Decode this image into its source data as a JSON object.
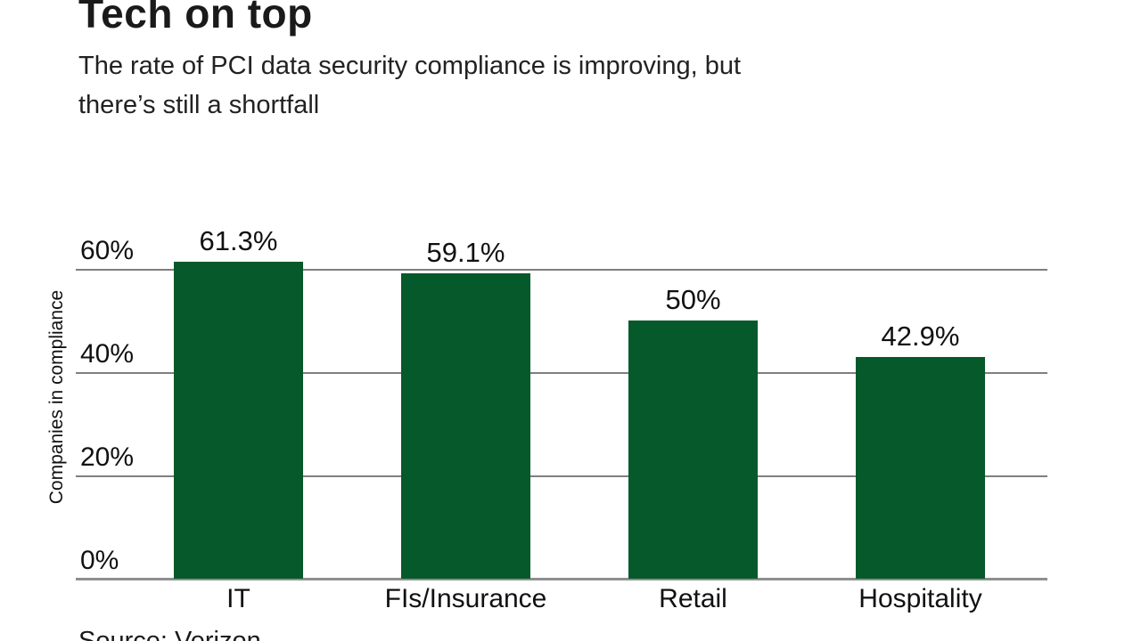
{
  "header": {
    "title": "Tech on top",
    "subtitle": "The rate of PCI data security compliance is improving, but\nthere’s still a shortfall"
  },
  "chart_data": {
    "type": "bar",
    "categories": [
      "IT",
      "FIs/Insurance",
      "Retail",
      "Hospitality"
    ],
    "values": [
      61.3,
      59.1,
      50,
      42.9
    ],
    "value_labels": [
      "61.3%",
      "59.1%",
      "50%",
      "42.9%"
    ],
    "title": "Tech on top",
    "xlabel": "",
    "ylabel": "Companies in compliance",
    "yticks": [
      0,
      20,
      40,
      60
    ],
    "ytick_labels": [
      "0%",
      "20%",
      "40%",
      "60%"
    ],
    "ylim": [
      0,
      66
    ],
    "grid": true,
    "legend": "none",
    "colors": {
      "bar": "#06592a",
      "gridline": "#7f7f7f",
      "axis_line": "#8f8f8f",
      "text": "#111111"
    }
  },
  "footer": {
    "source": "Source: Verizon"
  }
}
